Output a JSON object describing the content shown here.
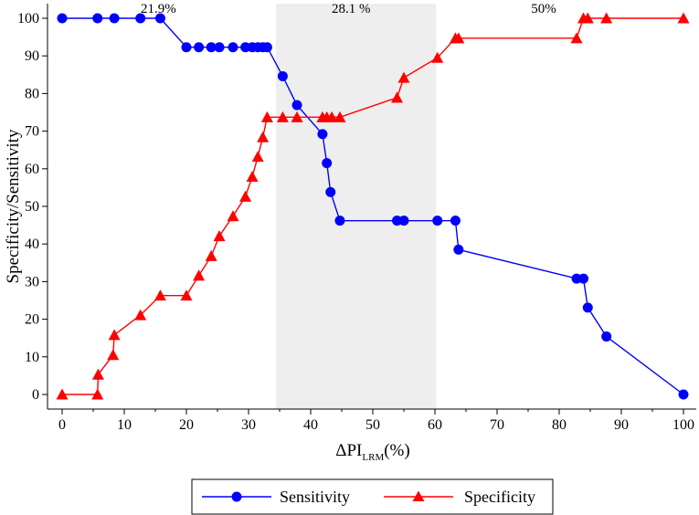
{
  "chart_data": {
    "type": "line",
    "xlabel": "ΔPI",
    "xlabel_sub": "LRM",
    "xlabel_suffix": "(%)",
    "ylabel": "Specificity/Sensitivity",
    "xlim": [
      0,
      100
    ],
    "ylim": [
      0,
      100
    ],
    "xticks": [
      0,
      10,
      20,
      30,
      40,
      50,
      60,
      70,
      80,
      90,
      100
    ],
    "yticks": [
      0,
      10,
      20,
      30,
      40,
      50,
      60,
      70,
      80,
      90,
      100
    ],
    "grid": false,
    "legend_position": "bottom",
    "shaded_region": {
      "x": [
        34.4,
        60.2
      ],
      "color": "#eeeeee"
    },
    "region_labels": [
      {
        "text": "21.9%",
        "x": 15.5
      },
      {
        "text": "28.1 %",
        "x": 46.5
      },
      {
        "text": "50%",
        "x": 77.5
      }
    ],
    "series": [
      {
        "name": "Sensitivity",
        "color": "#0000ff",
        "marker": "circle",
        "points": [
          [
            0,
            100
          ],
          [
            5.7,
            100
          ],
          [
            8.4,
            100
          ],
          [
            12.6,
            100
          ],
          [
            15.8,
            100
          ],
          [
            20,
            92.3
          ],
          [
            22,
            92.3
          ],
          [
            24,
            92.3
          ],
          [
            25.3,
            92.3
          ],
          [
            27.5,
            92.3
          ],
          [
            29.5,
            92.3
          ],
          [
            30.6,
            92.3
          ],
          [
            31.5,
            92.3
          ],
          [
            32.3,
            92.3
          ],
          [
            33,
            92.3
          ],
          [
            35.5,
            84.6
          ],
          [
            37.8,
            76.9
          ],
          [
            41.9,
            69.2
          ],
          [
            42.6,
            61.5
          ],
          [
            43.2,
            53.8
          ],
          [
            44.7,
            46.2
          ],
          [
            53.9,
            46.2
          ],
          [
            55,
            46.2
          ],
          [
            60.4,
            46.2
          ],
          [
            63.3,
            46.2
          ],
          [
            63.8,
            38.5
          ],
          [
            82.8,
            30.8
          ],
          [
            83.9,
            30.8
          ],
          [
            84.6,
            23.1
          ],
          [
            87.6,
            15.4
          ],
          [
            100,
            0
          ]
        ]
      },
      {
        "name": "Specificity",
        "color": "#ff0000",
        "marker": "triangle",
        "points": [
          [
            0,
            0
          ],
          [
            5.7,
            0
          ],
          [
            5.8,
            5.3
          ],
          [
            8.2,
            10.5
          ],
          [
            8.4,
            15.8
          ],
          [
            12.6,
            21.1
          ],
          [
            15.8,
            26.3
          ],
          [
            20,
            26.3
          ],
          [
            22,
            31.6
          ],
          [
            24,
            36.8
          ],
          [
            25.3,
            42.1
          ],
          [
            27.5,
            47.4
          ],
          [
            29.5,
            52.6
          ],
          [
            30.6,
            57.9
          ],
          [
            31.5,
            63.2
          ],
          [
            32.3,
            68.4
          ],
          [
            33,
            73.7
          ],
          [
            35.5,
            73.7
          ],
          [
            37.8,
            73.7
          ],
          [
            41.9,
            73.7
          ],
          [
            42.6,
            73.7
          ],
          [
            43.4,
            73.7
          ],
          [
            44.7,
            73.7
          ],
          [
            53.9,
            78.9
          ],
          [
            55,
            84.2
          ],
          [
            60.4,
            89.5
          ],
          [
            63.3,
            94.7
          ],
          [
            63.8,
            94.7
          ],
          [
            82.8,
            94.7
          ],
          [
            83.9,
            100
          ],
          [
            84.6,
            100
          ],
          [
            87.6,
            100
          ],
          [
            100,
            100
          ]
        ]
      }
    ]
  }
}
